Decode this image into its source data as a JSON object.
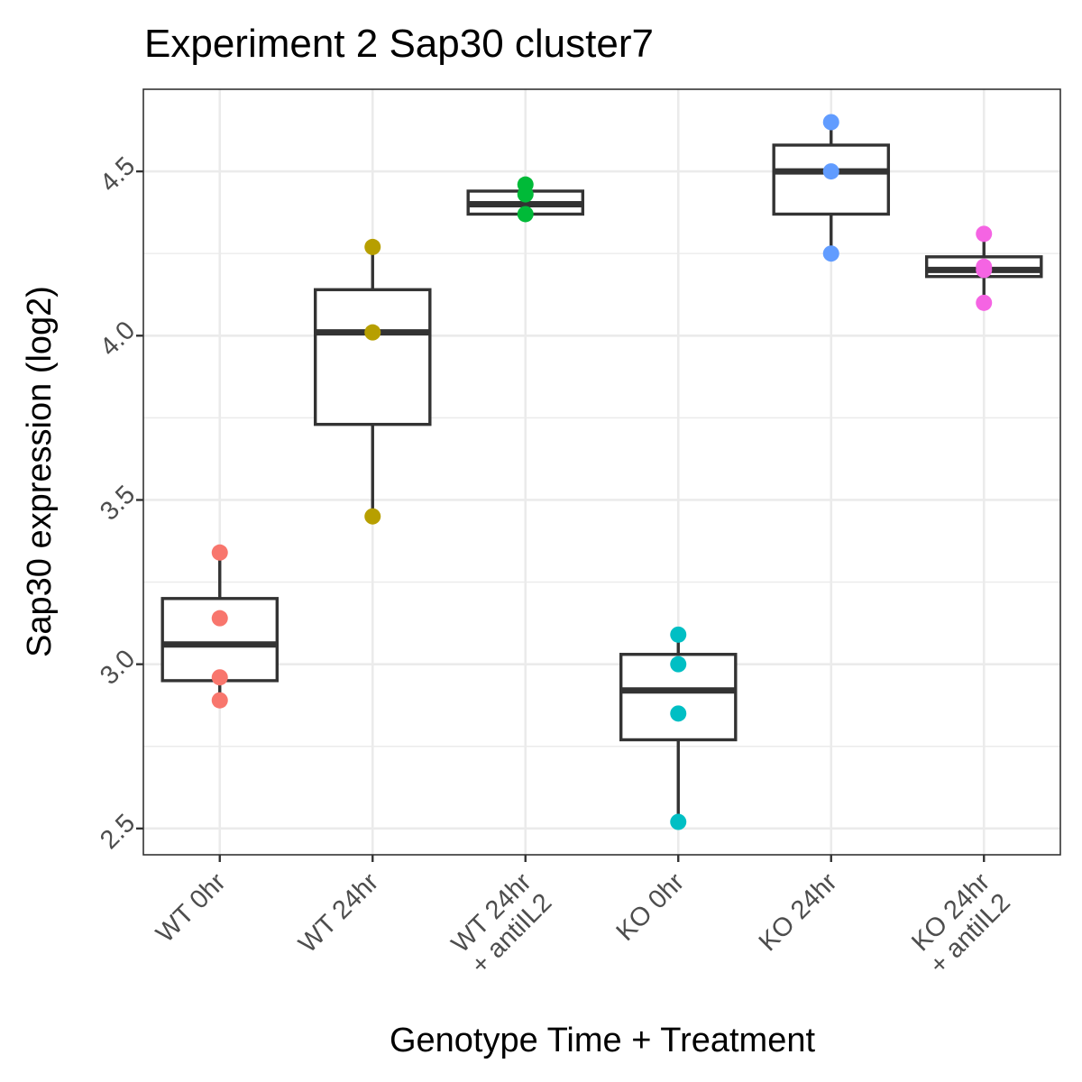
{
  "chart_data": {
    "type": "box",
    "title": "Experiment 2 Sap30 cluster7",
    "xlabel": "Genotype Time + Treatment",
    "ylabel": "Sap30 expression (log2)",
    "ylim": [
      2.42,
      4.75
    ],
    "yticks": [
      2.5,
      3.0,
      3.5,
      4.0,
      4.5
    ],
    "ytick_labels": [
      "2.5",
      "3.0",
      "3.5",
      "4.0",
      "4.5"
    ],
    "grid": true,
    "legend": "none",
    "categories": [
      {
        "label_lines": [
          "WT 0hr"
        ],
        "color": "#F8766D",
        "box": {
          "lower_whisker": 2.89,
          "q1": 2.95,
          "median": 3.06,
          "q3": 3.2,
          "upper_whisker": 3.34
        },
        "points": [
          3.34,
          3.14,
          2.96,
          2.89
        ]
      },
      {
        "label_lines": [
          "WT 24hr"
        ],
        "color": "#B79F00",
        "box": {
          "lower_whisker": 3.45,
          "q1": 3.73,
          "median": 4.01,
          "q3": 4.14,
          "upper_whisker": 4.27
        },
        "points": [
          4.27,
          4.01,
          3.45
        ]
      },
      {
        "label_lines": [
          "WT 24hr",
          "+ antiIL2"
        ],
        "color": "#00BA38",
        "box": {
          "lower_whisker": 4.37,
          "q1": 4.37,
          "median": 4.4,
          "q3": 4.44,
          "upper_whisker": 4.46
        },
        "points": [
          4.46,
          4.43,
          4.37
        ]
      },
      {
        "label_lines": [
          "KO 0hr"
        ],
        "color": "#00BFC4",
        "box": {
          "lower_whisker": 2.52,
          "q1": 2.77,
          "median": 2.92,
          "q3": 3.03,
          "upper_whisker": 3.09
        },
        "points": [
          3.09,
          3.0,
          2.85,
          2.52
        ]
      },
      {
        "label_lines": [
          "KO 24hr"
        ],
        "color": "#619CFF",
        "box": {
          "lower_whisker": 4.25,
          "q1": 4.37,
          "median": 4.5,
          "q3": 4.58,
          "upper_whisker": 4.65
        },
        "points": [
          4.65,
          4.5,
          4.25
        ]
      },
      {
        "label_lines": [
          "KO 24hr",
          "+ antiIL2"
        ],
        "color": "#F564E3",
        "box": {
          "lower_whisker": 4.1,
          "q1": 4.18,
          "median": 4.2,
          "q3": 4.24,
          "upper_whisker": 4.31
        },
        "points": [
          4.31,
          4.21,
          4.2,
          4.1
        ]
      }
    ]
  }
}
